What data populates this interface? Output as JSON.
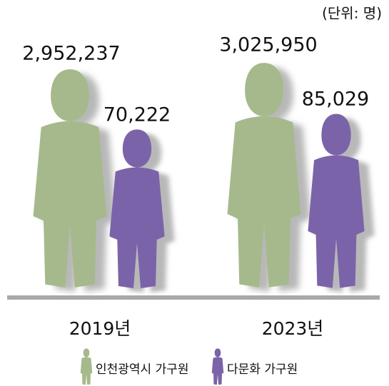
{
  "chart_data": {
    "type": "pictogram",
    "unit": "(단위: 명)",
    "categories": [
      "2019년",
      "2023년"
    ],
    "series": [
      {
        "name": "인천광역시 가구원",
        "color": "#a6b98c",
        "values": [
          2952237,
          3025950
        ],
        "value_labels": [
          "2,952,237",
          "3,025,950"
        ]
      },
      {
        "name": "다문화 가구원",
        "color": "#7b63a9",
        "values": [
          70222,
          85029
        ],
        "value_labels": [
          "70,222",
          "85,029"
        ]
      }
    ],
    "legend": "bottom"
  }
}
